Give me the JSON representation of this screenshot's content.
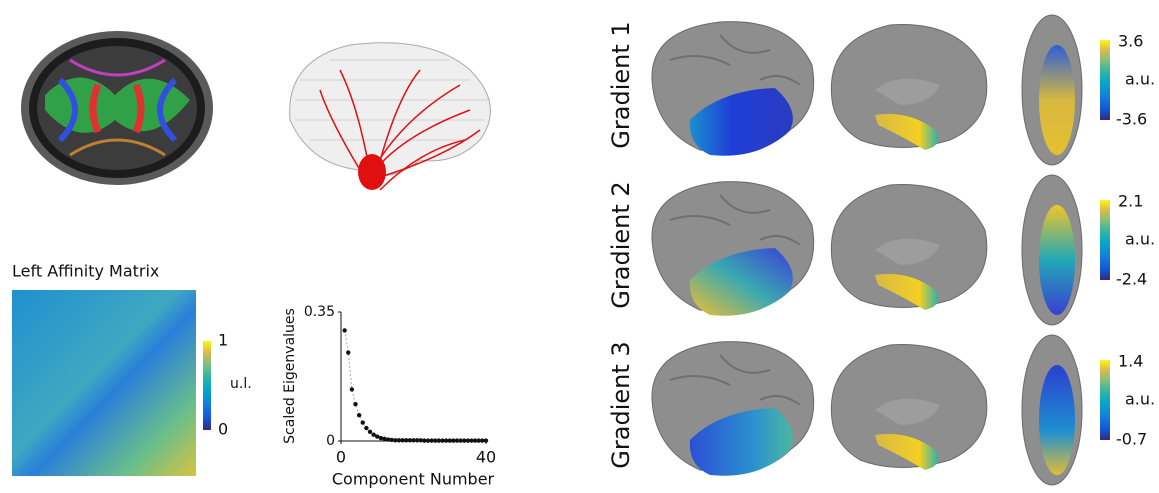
{
  "affinity_matrix": {
    "title": "Left Affinity Matrix",
    "colorbar": {
      "max": 1,
      "min": 0,
      "unit": "u.l."
    }
  },
  "chart_data": {
    "type": "scatter",
    "y_label": "Scaled Eigenvalues",
    "x_label": "Component Number",
    "x": [
      1,
      2,
      3,
      4,
      5,
      6,
      7,
      8,
      9,
      10,
      11,
      12,
      13,
      14,
      15,
      16,
      17,
      18,
      19,
      20,
      21,
      22,
      23,
      24,
      25,
      26,
      27,
      28,
      29,
      30,
      31,
      32,
      33,
      34,
      35,
      36,
      37,
      38,
      39,
      40
    ],
    "values": [
      0.3,
      0.24,
      0.14,
      0.1,
      0.07,
      0.05,
      0.035,
      0.025,
      0.017,
      0.012,
      0.008,
      0.006,
      0.004,
      0.003,
      0.002,
      0.002,
      0.002,
      0.002,
      0.002,
      0.002,
      0.002,
      0.002,
      0.001,
      0.001,
      0.001,
      0.001,
      0.001,
      0.001,
      0.001,
      0.001,
      0.001,
      0.001,
      0.001,
      0.001,
      0.001,
      0.001,
      0.001,
      0.001,
      0.001,
      0.001
    ],
    "color": "#111111",
    "xlim": [
      0,
      40
    ],
    "xticks": [
      0,
      40
    ],
    "ylim": [
      0,
      0.35
    ],
    "yticks": [
      0,
      0.35
    ]
  },
  "gradients": [
    {
      "label": "Gradient 1",
      "max": 3.6,
      "min": -3.6,
      "unit": "a.u."
    },
    {
      "label": "Gradient 2",
      "max": 2.1,
      "min": -2.4,
      "unit": "a.u."
    },
    {
      "label": "Gradient 3",
      "max": 1.4,
      "min": -0.7,
      "unit": "a.u."
    }
  ]
}
